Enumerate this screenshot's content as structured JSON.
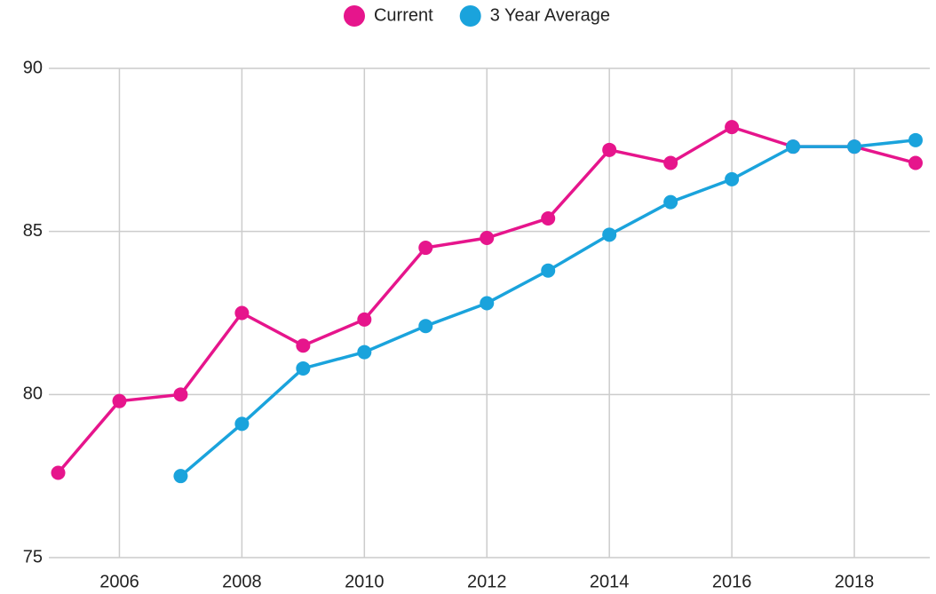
{
  "chart_data": {
    "type": "line",
    "x": [
      2005,
      2006,
      2007,
      2008,
      2009,
      2010,
      2011,
      2012,
      2013,
      2014,
      2015,
      2016,
      2017,
      2018,
      2019
    ],
    "series": [
      {
        "name": "Current",
        "color": "#e6158c",
        "values": [
          77.6,
          79.8,
          80.0,
          82.5,
          81.5,
          82.3,
          84.5,
          84.8,
          85.4,
          87.5,
          87.1,
          88.2,
          87.6,
          87.6,
          87.1
        ]
      },
      {
        "name": "3 Year Average",
        "color": "#1aa3dc",
        "values": [
          null,
          null,
          77.5,
          79.1,
          80.8,
          81.3,
          82.1,
          82.8,
          83.8,
          84.9,
          85.9,
          86.6,
          87.6,
          87.6,
          87.8
        ]
      }
    ],
    "xlim": [
      2005,
      2019
    ],
    "xticks": [
      2006,
      2008,
      2010,
      2012,
      2014,
      2016,
      2018
    ],
    "ylim": [
      75,
      90
    ],
    "yticks": [
      75,
      80,
      85,
      90
    ],
    "grid": true,
    "legend": "top"
  }
}
